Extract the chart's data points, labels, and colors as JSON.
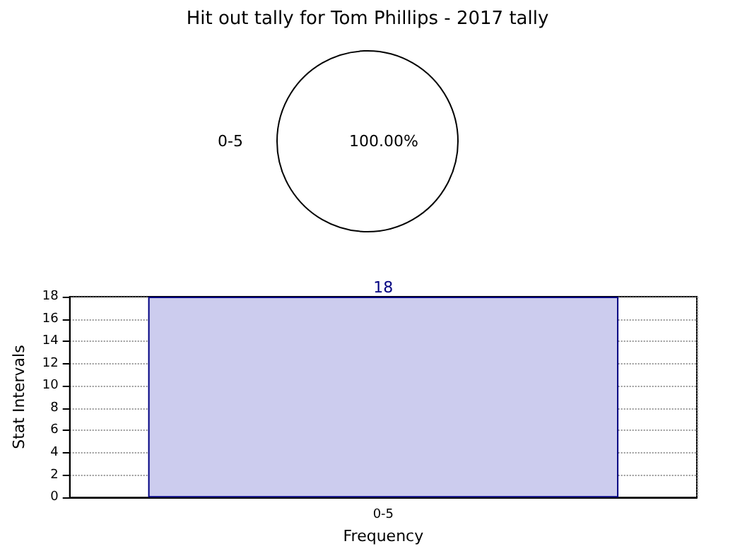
{
  "chart_data": [
    {
      "type": "pie",
      "title": "Hit out tally for Tom Phillips - 2017 tally",
      "categories": [
        "0-5"
      ],
      "values": [
        100
      ],
      "colors": [
        "#ffffff"
      ],
      "value_labels": [
        "100.00%"
      ]
    },
    {
      "type": "bar",
      "categories": [
        "0-5"
      ],
      "values": [
        18
      ],
      "color": "#ccccee",
      "ylim": [
        0,
        18
      ],
      "yticks": [
        0,
        2,
        4,
        6,
        8,
        10,
        12,
        14,
        16,
        18
      ],
      "grid": true,
      "data_labels": true,
      "xlabel": "Frequency",
      "ylabel": "Stat Intervals"
    }
  ]
}
